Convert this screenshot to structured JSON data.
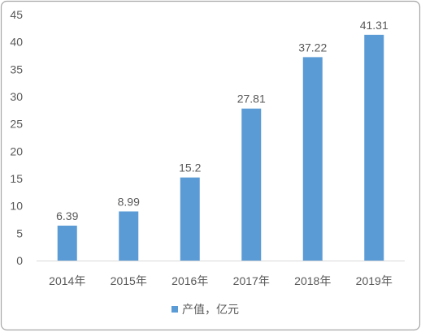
{
  "chart_data": {
    "type": "bar",
    "categories": [
      "2014年",
      "2015年",
      "2016年",
      "2017年",
      "2018年",
      "2019年"
    ],
    "series": [
      {
        "name": "产值，亿元",
        "values": [
          6.39,
          8.99,
          15.2,
          27.81,
          37.22,
          41.31
        ],
        "color": "#5B9BD5"
      }
    ],
    "ylim": [
      0,
      45
    ],
    "yticks": [
      0,
      5,
      10,
      15,
      20,
      25,
      30,
      35,
      40,
      45
    ],
    "data_labels": true,
    "grid": false,
    "legend": "bottom"
  },
  "colors": {
    "text": "#595959",
    "axis": "#D9D9D9",
    "border": "#A6A6A6",
    "background": "#FFFFFF"
  }
}
